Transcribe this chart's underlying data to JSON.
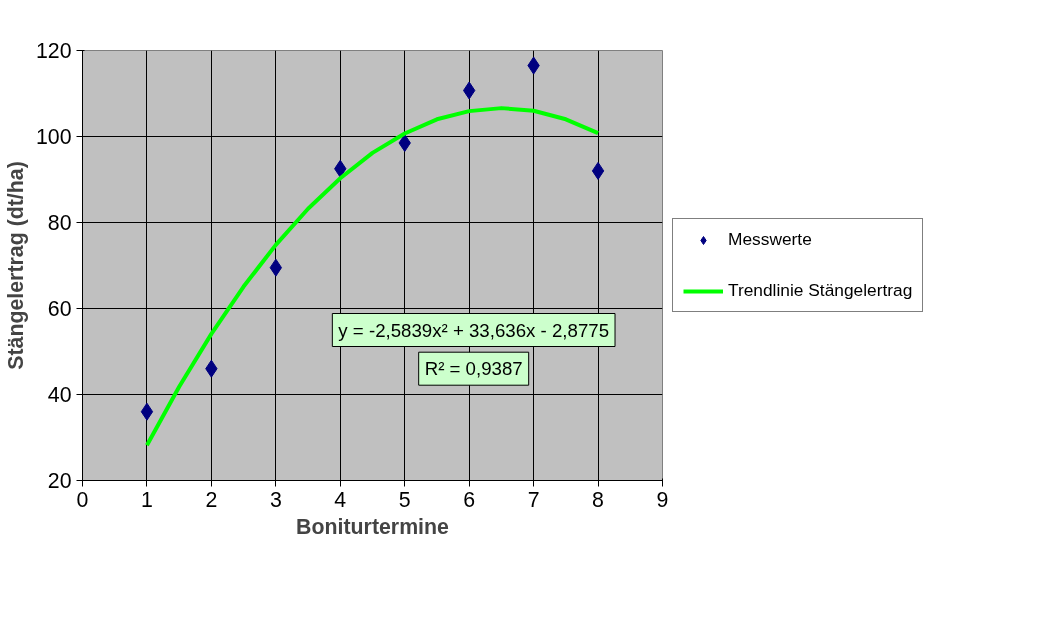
{
  "chart_data": {
    "type": "scatter",
    "xlabel": "Boniturtermine",
    "ylabel": "Stängelertrag (dt/ha)",
    "x": [
      1,
      2,
      3,
      4,
      5,
      6,
      7,
      8
    ],
    "series": [
      {
        "name": "Messwerte",
        "type": "scatter",
        "color": "#000080",
        "marker": "diamond",
        "values": [
          36,
          46,
          69.5,
          92.5,
          98.5,
          110.7,
          116.5,
          92
        ]
      },
      {
        "name": "Trendlinie Stängelertrag",
        "type": "line",
        "color": "#00ff00",
        "line_style": "solid",
        "x": [
          1,
          1.5,
          2,
          2.5,
          3,
          3.5,
          4,
          4.5,
          5,
          5.5,
          6,
          6.5,
          7,
          7.5,
          8
        ],
        "values": [
          28.2,
          41.8,
          54.1,
          65.1,
          74.8,
          83.2,
          90.3,
          96.2,
          100.7,
          104,
          105.9,
          106.6,
          106,
          104,
          100.8
        ]
      }
    ],
    "xlim": [
      0,
      9
    ],
    "xticks": [
      0,
      1,
      2,
      3,
      4,
      5,
      6,
      7,
      8,
      9
    ],
    "ylim": [
      20,
      120
    ],
    "yticks": [
      20,
      40,
      60,
      80,
      100,
      120
    ],
    "grid": true,
    "legend": "right",
    "annotations": [
      "y = -2,5839x² + 33,636x - 2,8775",
      "R² = 0,9387"
    ]
  }
}
